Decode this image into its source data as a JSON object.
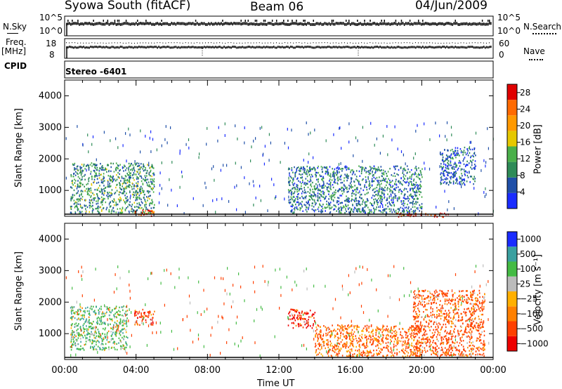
{
  "header": {
    "station": "Syowa South (fitACF)",
    "beam": "Beam 06",
    "date": "04/Jun/2009"
  },
  "strip_labels": {
    "nsky": "N.Sky",
    "freq": "Freq.",
    "mhz": "[MHz]",
    "cpid": "CPID",
    "nsearch": "N.Search",
    "nave": "Nave",
    "stereo": "Stereo -6401"
  },
  "strip_ticks": {
    "nsky_top": "10^5",
    "nsky_bottom": "10^0",
    "freq_top": "18",
    "freq_bottom": "8",
    "nave_top": "60",
    "nave_bottom": "0"
  },
  "chart_data": [
    {
      "type": "heatmap",
      "panel": "power",
      "ylabel": "Slant Range [km]",
      "xlabel": "Time UT",
      "ylim": [
        180,
        4500
      ],
      "xlim": [
        0,
        24
      ],
      "x_ticks": [
        "00:00",
        "04:00",
        "08:00",
        "12:00",
        "16:00",
        "20:00",
        "00:00"
      ],
      "y_ticks": [
        1000,
        2000,
        3000,
        4000
      ],
      "colorbar": {
        "label": "Power [dB]",
        "ticks": [
          4,
          8,
          12,
          16,
          20,
          24,
          28
        ],
        "range": [
          0,
          30
        ]
      },
      "scatter_regions_approx": [
        {
          "t_start": 0.3,
          "t_end": 5.0,
          "r_start": 300,
          "r_end": 1900,
          "typical_value": 10
        },
        {
          "t_start": 3.8,
          "t_end": 5.0,
          "r_start": 180,
          "r_end": 400,
          "typical_value": 26
        },
        {
          "t_start": 12.5,
          "t_end": 20.0,
          "r_start": 300,
          "r_end": 1800,
          "typical_value": 8
        },
        {
          "t_start": 18.5,
          "t_end": 21.5,
          "r_start": 180,
          "r_end": 300,
          "typical_value": 28
        },
        {
          "t_start": 21.0,
          "t_end": 23.0,
          "r_start": 1200,
          "r_end": 2400,
          "typical_value": 6
        }
      ]
    },
    {
      "type": "heatmap",
      "panel": "velocity",
      "ylabel": "Slant Range [km]",
      "xlabel": "Time UT",
      "ylim": [
        180,
        4500
      ],
      "xlim": [
        0,
        24
      ],
      "x_ticks": [
        "00:00",
        "04:00",
        "08:00",
        "12:00",
        "16:00",
        "20:00",
        "00:00"
      ],
      "y_ticks": [
        1000,
        2000,
        3000,
        4000
      ],
      "colorbar": {
        "label": "Velocity [m s⁻¹]",
        "ticks": [
          "1000",
          "500",
          "100",
          "25",
          "−25",
          "−100",
          "−500",
          "−1000"
        ]
      },
      "scatter_regions_approx": [
        {
          "t_start": 0.3,
          "t_end": 3.5,
          "r_start": 500,
          "r_end": 1900,
          "typical_value": 300
        },
        {
          "t_start": 3.8,
          "t_end": 5.0,
          "r_start": 1300,
          "r_end": 1800,
          "typical_value": -300
        },
        {
          "t_start": 12.5,
          "t_end": 14.0,
          "r_start": 1200,
          "r_end": 1800,
          "typical_value": -500
        },
        {
          "t_start": 14.0,
          "t_end": 20.0,
          "r_start": 300,
          "r_end": 1300,
          "typical_value": -100
        },
        {
          "t_start": 19.5,
          "t_end": 23.5,
          "r_start": 300,
          "r_end": 2400,
          "typical_value": -200
        }
      ]
    }
  ],
  "colors": {
    "power_scale": [
      "#1a2cff",
      "#1f4fa8",
      "#2e8b57",
      "#4ab04a",
      "#e6c800",
      "#ff9900",
      "#ff6a00",
      "#e00000"
    ],
    "velocity_scale": [
      "#1a2cff",
      "#3aa0a0",
      "#44bb44",
      "#bbbbbb",
      "#ffb000",
      "#ff8000",
      "#ff4000",
      "#ee0000"
    ]
  }
}
